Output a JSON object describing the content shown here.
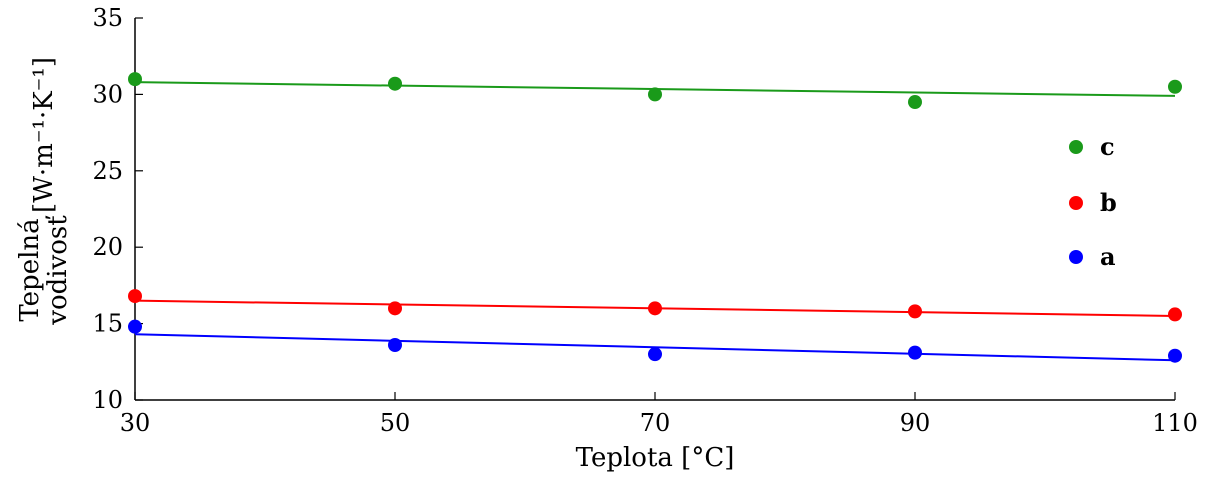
{
  "chart_data": {
    "type": "scatter",
    "title": "",
    "xlabel": "Teplota [°C]",
    "ylabel_line1": "Tepelná",
    "ylabel_line2": "vodivosť",
    "ylabel_unit": "[W·m⁻¹·K⁻¹]",
    "xlim": [
      30,
      110
    ],
    "ylim": [
      10,
      35
    ],
    "xticks": [
      30,
      50,
      70,
      90,
      110
    ],
    "yticks": [
      10,
      15,
      20,
      25,
      30,
      35
    ],
    "grid": false,
    "legend_position": "right",
    "series": [
      {
        "name": "c",
        "color": "#1a9a1a",
        "x": [
          30,
          50,
          70,
          90,
          110
        ],
        "y": [
          31.0,
          30.7,
          30.0,
          29.5,
          30.5
        ],
        "trend": [
          30.8,
          29.9
        ]
      },
      {
        "name": "b",
        "color": "#ff0000",
        "x": [
          30,
          50,
          70,
          90,
          110
        ],
        "y": [
          16.8,
          16.0,
          16.0,
          15.8,
          15.6
        ],
        "trend": [
          16.5,
          15.5
        ]
      },
      {
        "name": "a",
        "color": "#0000ff",
        "x": [
          30,
          50,
          70,
          90,
          110
        ],
        "y": [
          14.8,
          13.6,
          13.0,
          13.1,
          12.9
        ],
        "trend": [
          14.3,
          12.6
        ]
      }
    ]
  }
}
